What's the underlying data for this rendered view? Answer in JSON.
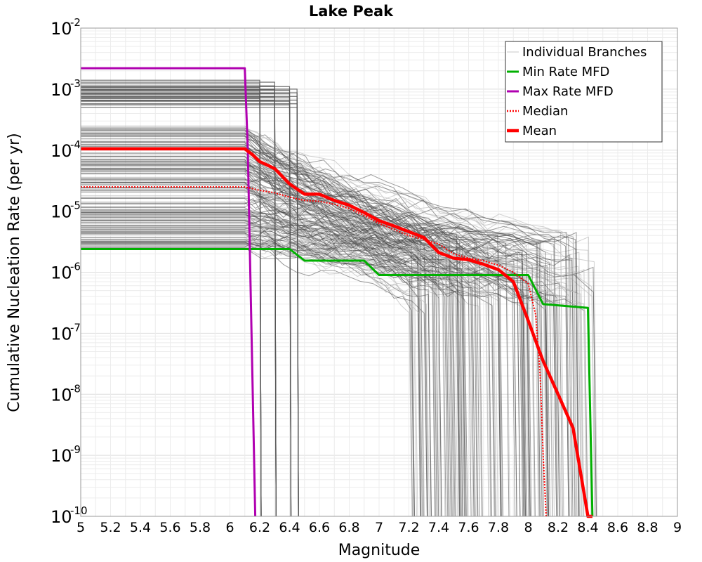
{
  "chart_data": {
    "type": "line",
    "title": "Lake Peak",
    "xlabel": "Magnitude",
    "ylabel": "Cumulative Nucleation Rate (per yr)",
    "xlim": [
      5,
      9
    ],
    "ylim": [
      1e-10,
      0.01
    ],
    "yscale": "log",
    "grid": true,
    "legend_position": "top-right",
    "x_ticks": [
      5,
      5.2,
      5.4,
      5.6,
      5.8,
      6,
      6.2,
      6.4,
      6.6,
      6.8,
      7,
      7.2,
      7.4,
      7.6,
      7.8,
      8,
      8.2,
      8.4,
      8.6,
      8.8,
      9
    ],
    "x_tick_labels": [
      "5",
      "5.2",
      "5.4",
      "5.6",
      "5.8",
      "6",
      "6.2",
      "6.4",
      "6.6",
      "6.8",
      "7",
      "7.2",
      "7.4",
      "7.6",
      "7.8",
      "8",
      "8.2",
      "8.4",
      "8.6",
      "8.8",
      "9"
    ],
    "y_ticks": [
      {
        "base": "10",
        "exp": "-10",
        "value": 1e-10
      },
      {
        "base": "10",
        "exp": "-9",
        "value": 1e-09
      },
      {
        "base": "10",
        "exp": "-8",
        "value": 1e-08
      },
      {
        "base": "10",
        "exp": "-7",
        "value": 1e-07
      },
      {
        "base": "10",
        "exp": "-6",
        "value": 1e-06
      },
      {
        "base": "10",
        "exp": "-5",
        "value": 1e-05
      },
      {
        "base": "10",
        "exp": "-4",
        "value": 0.0001
      },
      {
        "base": "10",
        "exp": "-3",
        "value": 0.001
      },
      {
        "base": "10",
        "exp": "-2",
        "value": 0.01
      }
    ],
    "legend": [
      {
        "label": "Individual Branches",
        "color": "#c8c8c8",
        "style": "thin"
      },
      {
        "label": "Min Rate MFD",
        "color": "#00b000",
        "style": "solid"
      },
      {
        "label": "Max Rate MFD",
        "color": "#b000b0",
        "style": "solid"
      },
      {
        "label": "Median",
        "color": "#ff0000",
        "style": "dotted"
      },
      {
        "label": "Mean",
        "color": "#ff0000",
        "style": "thick"
      }
    ],
    "series": [
      {
        "name": "Min Rate MFD",
        "color": "#00b000",
        "x": [
          5,
          6.1,
          6.4,
          6.5,
          6.9,
          7.0,
          7.95,
          8.0,
          8.1,
          8.4,
          8.43
        ],
        "y": [
          2.4e-06,
          2.4e-06,
          2.4e-06,
          1.55e-06,
          1.55e-06,
          9e-07,
          9e-07,
          9e-07,
          3e-07,
          2.6e-07,
          1e-10
        ]
      },
      {
        "name": "Max Rate MFD",
        "color": "#b000b0",
        "x": [
          5,
          6.1,
          6.12,
          6.17
        ],
        "y": [
          0.0022,
          0.0022,
          0.0001,
          1e-10
        ]
      },
      {
        "name": "Median",
        "color": "#ff0000",
        "x": [
          5,
          6.1,
          6.2,
          6.3,
          6.4,
          6.5,
          6.6,
          6.7,
          6.8,
          6.9,
          7.0,
          7.1,
          7.2,
          7.3,
          7.4,
          7.5,
          7.6,
          7.7,
          7.8,
          7.9,
          8.0,
          8.05,
          8.08,
          8.1,
          8.12
        ],
        "y": [
          2.5e-05,
          2.5e-05,
          2.2e-05,
          2e-05,
          1.7e-05,
          1.5e-05,
          1.45e-05,
          1.3e-05,
          1.1e-05,
          8.5e-06,
          6.3e-06,
          5e-06,
          4e-06,
          3.4e-06,
          2.9e-06,
          2e-06,
          1.7e-06,
          1.55e-06,
          1.3e-06,
          1e-06,
          6.5e-07,
          2e-07,
          2e-08,
          1e-09,
          1e-10
        ]
      },
      {
        "name": "Mean",
        "color": "#ff0000",
        "x": [
          5,
          6.1,
          6.15,
          6.2,
          6.3,
          6.4,
          6.5,
          6.6,
          6.7,
          6.8,
          6.9,
          7.0,
          7.1,
          7.2,
          7.3,
          7.4,
          7.5,
          7.6,
          7.7,
          7.8,
          7.9,
          8.0,
          8.1,
          8.2,
          8.3,
          8.4,
          8.43
        ],
        "y": [
          0.000105,
          0.000105,
          8.5e-05,
          6.5e-05,
          5e-05,
          2.8e-05,
          1.9e-05,
          1.9e-05,
          1.5e-05,
          1.25e-05,
          9.5e-06,
          7e-06,
          5.7e-06,
          4.6e-06,
          3.7e-06,
          2.1e-06,
          1.7e-06,
          1.6e-06,
          1.35e-06,
          1.1e-06,
          7e-07,
          1.6e-07,
          3.5e-08,
          1e-08,
          2.8e-09,
          1e-10,
          1e-10
        ]
      }
    ],
    "branch_cutoff_lines": {
      "color": "#555555",
      "x": [
        6.2,
        6.3,
        6.4,
        6.45
      ],
      "y_top": [
        0.0014,
        0.0013,
        0.0011,
        0.001
      ]
    }
  }
}
